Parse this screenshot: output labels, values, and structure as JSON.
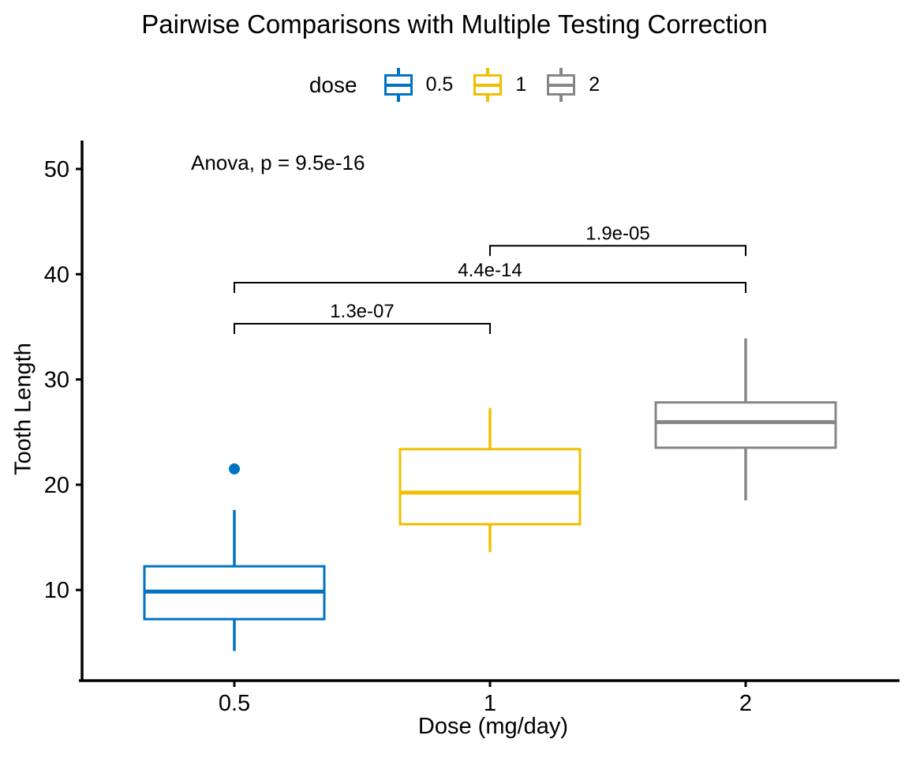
{
  "title": "Pairwise Comparisons with Multiple Testing Correction",
  "legend": {
    "title": "dose",
    "items": [
      {
        "label": "0.5",
        "color": "#0073C2"
      },
      {
        "label": "1",
        "color": "#EFC000"
      },
      {
        "label": "2",
        "color": "#868686"
      }
    ]
  },
  "chart_data": {
    "type": "boxplot",
    "title": "Pairwise Comparisons with Multiple Testing Correction",
    "xlabel": "Dose (mg/day)",
    "ylabel": "Tooth Length",
    "categories": [
      "0.5",
      "1",
      "2"
    ],
    "y_ticks": [
      10,
      20,
      30,
      40,
      50
    ],
    "ylim": [
      1.5,
      53
    ],
    "grid": false,
    "legend_position": "top",
    "anova_label": "Anova, p = 9.5e-16",
    "series": [
      {
        "name": "0.5",
        "color": "#0073C2",
        "lower_whisker": 4.2,
        "q1": 7.23,
        "median": 9.85,
        "q3": 12.25,
        "upper_whisker": 17.6,
        "outliers": [
          21.5
        ]
      },
      {
        "name": "1",
        "color": "#EFC000",
        "lower_whisker": 13.6,
        "q1": 16.25,
        "median": 19.25,
        "q3": 23.38,
        "upper_whisker": 27.3,
        "outliers": []
      },
      {
        "name": "2",
        "color": "#868686",
        "lower_whisker": 18.5,
        "q1": 23.52,
        "median": 25.95,
        "q3": 27.82,
        "upper_whisker": 33.9,
        "outliers": []
      }
    ],
    "comparisons": [
      {
        "group1": "0.5",
        "group2": "1",
        "label": "1.3e-07",
        "y_position": 35.3
      },
      {
        "group1": "0.5",
        "group2": "2",
        "label": "4.4e-14",
        "y_position": 39.2
      },
      {
        "group1": "1",
        "group2": "2",
        "label": "1.9e-05",
        "y_position": 42.7
      }
    ],
    "axis_color": "#000000"
  }
}
